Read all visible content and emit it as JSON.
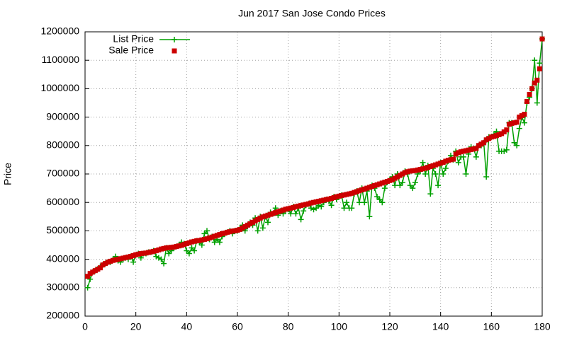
{
  "chart_data": {
    "type": "line_scatter",
    "title": "Jun 2017 San Jose Condo Prices",
    "y_label": "Price",
    "x": [
      1,
      2,
      3,
      4,
      5,
      6,
      7,
      8,
      9,
      10,
      11,
      12,
      13,
      14,
      15,
      16,
      17,
      18,
      19,
      20,
      21,
      22,
      23,
      24,
      25,
      26,
      27,
      28,
      29,
      30,
      31,
      32,
      33,
      34,
      35,
      36,
      37,
      38,
      39,
      40,
      41,
      42,
      43,
      44,
      45,
      46,
      47,
      48,
      49,
      50,
      51,
      52,
      53,
      54,
      55,
      56,
      57,
      58,
      59,
      60,
      61,
      62,
      63,
      64,
      65,
      66,
      67,
      68,
      69,
      70,
      71,
      72,
      73,
      74,
      75,
      76,
      77,
      78,
      79,
      80,
      81,
      82,
      83,
      84,
      85,
      86,
      87,
      88,
      89,
      90,
      91,
      92,
      93,
      94,
      95,
      96,
      97,
      98,
      99,
      100,
      101,
      102,
      103,
      104,
      105,
      106,
      107,
      108,
      109,
      110,
      111,
      112,
      113,
      114,
      115,
      116,
      117,
      118,
      119,
      120,
      121,
      122,
      123,
      124,
      125,
      126,
      127,
      128,
      129,
      130,
      131,
      132,
      133,
      134,
      135,
      136,
      137,
      138,
      139,
      140,
      141,
      142,
      143,
      144,
      145,
      146,
      147,
      148,
      149,
      150,
      151,
      152,
      153,
      154,
      155,
      156,
      157,
      158,
      159,
      160,
      161,
      162,
      163,
      164,
      165,
      166,
      167,
      168,
      169,
      170,
      171,
      172,
      173,
      174,
      175,
      176,
      177,
      178,
      179,
      180
    ],
    "series": [
      {
        "name": "List Price",
        "color": "#00a000",
        "style": "linespoints",
        "values": [
          300000,
          330000,
          355000,
          360000,
          365000,
          375000,
          380000,
          385000,
          390000,
          390000,
          400000,
          410000,
          395000,
          390000,
          400000,
          405000,
          400000,
          410000,
          390000,
          415000,
          420000,
          405000,
          420000,
          420000,
          425000,
          425000,
          430000,
          410000,
          405000,
          400000,
          385000,
          440000,
          420000,
          430000,
          440000,
          445000,
          450000,
          460000,
          455000,
          430000,
          420000,
          440000,
          430000,
          465000,
          460000,
          450000,
          490000,
          500000,
          470000,
          480000,
          460000,
          470000,
          460000,
          480000,
          490000,
          495000,
          500000,
          490000,
          500000,
          500000,
          510000,
          520000,
          500000,
          515000,
          530000,
          520000,
          545000,
          500000,
          550000,
          510000,
          550000,
          530000,
          565000,
          560000,
          580000,
          555000,
          570000,
          560000,
          570000,
          575000,
          560000,
          585000,
          560000,
          580000,
          540000,
          570000,
          590000,
          595000,
          580000,
          575000,
          580000,
          590000,
          585000,
          600000,
          610000,
          605000,
          590000,
          620000,
          610000,
          620000,
          625000,
          580000,
          600000,
          580000,
          580000,
          630000,
          640000,
          600000,
          650000,
          600000,
          640000,
          550000,
          660000,
          650000,
          620000,
          610000,
          600000,
          650000,
          670000,
          680000,
          690000,
          660000,
          700000,
          660000,
          670000,
          710000,
          700000,
          660000,
          650000,
          670000,
          700000,
          710000,
          740000,
          700000,
          730000,
          630000,
          720000,
          700000,
          660000,
          740000,
          700000,
          720000,
          745000,
          765000,
          750000,
          780000,
          740000,
          760000,
          760000,
          700000,
          770000,
          795000,
          790000,
          760000,
          800000,
          800000,
          810000,
          690000,
          830000,
          830000,
          840000,
          850000,
          780000,
          780000,
          780000,
          785000,
          880000,
          880000,
          810000,
          800000,
          860000,
          900000,
          880000,
          950000,
          970000,
          1000000,
          1100000,
          950000,
          1090000,
          1175000
        ]
      },
      {
        "name": "Sale Price",
        "color": "#cc0000",
        "style": "points",
        "values": [
          340000,
          350000,
          355000,
          360000,
          365000,
          370000,
          380000,
          385000,
          390000,
          393000,
          396000,
          398000,
          400000,
          402000,
          404000,
          406000,
          408000,
          410000,
          413000,
          416000,
          418000,
          420000,
          421000,
          422000,
          424000,
          426000,
          428000,
          430000,
          433000,
          436000,
          438000,
          440000,
          441000,
          442000,
          443000,
          445000,
          447000,
          449000,
          452000,
          455000,
          458000,
          461000,
          463000,
          465000,
          466000,
          468000,
          470000,
          472000,
          475000,
          478000,
          481000,
          484000,
          487000,
          490000,
          492000,
          495000,
          497000,
          499000,
          500000,
          502000,
          505000,
          510000,
          515000,
          520000,
          525000,
          530000,
          535000,
          540000,
          545000,
          549000,
          552000,
          555000,
          558000,
          561000,
          564000,
          567000,
          570000,
          573000,
          576000,
          578000,
          580000,
          582000,
          585000,
          587000,
          589000,
          591000,
          593000,
          595000,
          598000,
          600000,
          602000,
          604000,
          606000,
          608000,
          610000,
          612000,
          614000,
          617000,
          620000,
          622000,
          624000,
          626000,
          628000,
          630000,
          632000,
          635000,
          638000,
          641000,
          644000,
          647000,
          650000,
          653000,
          656000,
          659000,
          662000,
          665000,
          668000,
          671000,
          674000,
          677000,
          680000,
          685000,
          690000,
          695000,
          700000,
          705000,
          708000,
          710000,
          711000,
          712000,
          714000,
          716000,
          718000,
          720000,
          723000,
          726000,
          729000,
          732000,
          735000,
          738000,
          741000,
          745000,
          748000,
          750000,
          752000,
          770000,
          775000,
          778000,
          780000,
          782000,
          784000,
          786000,
          788000,
          790000,
          800000,
          805000,
          810000,
          820000,
          825000,
          830000,
          832000,
          835000,
          838000,
          842000,
          848000,
          855000,
          875000,
          878000,
          880000,
          882000,
          900000,
          905000,
          910000,
          955000,
          980000,
          1000000,
          1020000,
          1030000,
          1070000,
          1175000
        ]
      }
    ],
    "xlim": [
      0,
      180
    ],
    "xticks": [
      0,
      20,
      40,
      60,
      80,
      100,
      120,
      140,
      160,
      180
    ],
    "ylim": [
      200000,
      1200000
    ],
    "yticks": [
      200000,
      300000,
      400000,
      500000,
      600000,
      700000,
      800000,
      900000,
      1000000,
      1100000,
      1200000
    ],
    "grid": true,
    "legend": "top-left"
  }
}
